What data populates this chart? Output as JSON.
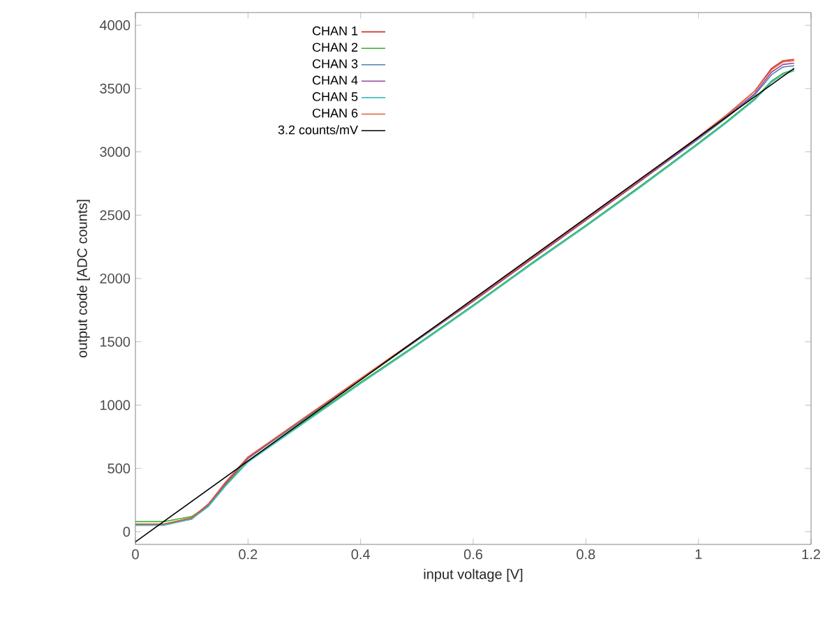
{
  "chart_data": {
    "type": "line",
    "xlabel": "input voltage [V]",
    "ylabel": "output code [ADC counts]",
    "xlim": [
      0,
      1.2
    ],
    "ylim": [
      -100,
      4100
    ],
    "xticks": [
      0,
      0.2,
      0.4,
      0.6,
      0.8,
      1,
      1.2
    ],
    "yticks": [
      0,
      500,
      1000,
      1500,
      2000,
      2500,
      3000,
      3500,
      4000
    ],
    "grid": false,
    "legend": "top left",
    "marker": "none",
    "line_style": "solid",
    "x": [
      0,
      0.05,
      0.1,
      0.13,
      0.16,
      0.2,
      0.3,
      0.4,
      0.5,
      0.6,
      0.7,
      0.8,
      0.9,
      1.0,
      1.05,
      1.1,
      1.13,
      1.15,
      1.17
    ],
    "series": [
      {
        "name": "CHAN 1",
        "color": "#d03030",
        "values": [
          60,
          60,
          110,
          220,
          390,
          590,
          900,
          1210,
          1520,
          1830,
          2150,
          2470,
          2790,
          3120,
          3290,
          3480,
          3660,
          3720,
          3730
        ]
      },
      {
        "name": "CHAN 2",
        "color": "#30b030",
        "values": [
          80,
          80,
          120,
          210,
          370,
          560,
          870,
          1180,
          1480,
          1790,
          2110,
          2420,
          2740,
          3070,
          3240,
          3420,
          3560,
          3620,
          3650
        ]
      },
      {
        "name": "CHAN 3",
        "color": "#5080b0",
        "values": [
          60,
          60,
          100,
          210,
          380,
          580,
          890,
          1200,
          1510,
          1820,
          2140,
          2460,
          2780,
          3100,
          3270,
          3450,
          3610,
          3670,
          3680
        ]
      },
      {
        "name": "CHAN 4",
        "color": "#a040a0",
        "values": [
          60,
          60,
          100,
          220,
          380,
          580,
          900,
          1200,
          1520,
          1820,
          2140,
          2460,
          2780,
          3110,
          3280,
          3460,
          3630,
          3690,
          3700
        ]
      },
      {
        "name": "CHAN 5",
        "color": "#40c0c0",
        "values": [
          50,
          50,
          100,
          200,
          360,
          550,
          860,
          1170,
          1470,
          1780,
          2100,
          2410,
          2730,
          3060,
          3230,
          3410,
          3550,
          3610,
          3640
        ]
      },
      {
        "name": "CHAN 6",
        "color": "#e06030",
        "values": [
          60,
          60,
          110,
          220,
          390,
          590,
          900,
          1210,
          1520,
          1830,
          2150,
          2470,
          2790,
          3120,
          3290,
          3480,
          3650,
          3710,
          3720
        ]
      },
      {
        "name": "3.2 counts/mV",
        "color": "#000000",
        "x": [
          0,
          1.17
        ],
        "values": [
          -80,
          3660
        ]
      }
    ]
  }
}
